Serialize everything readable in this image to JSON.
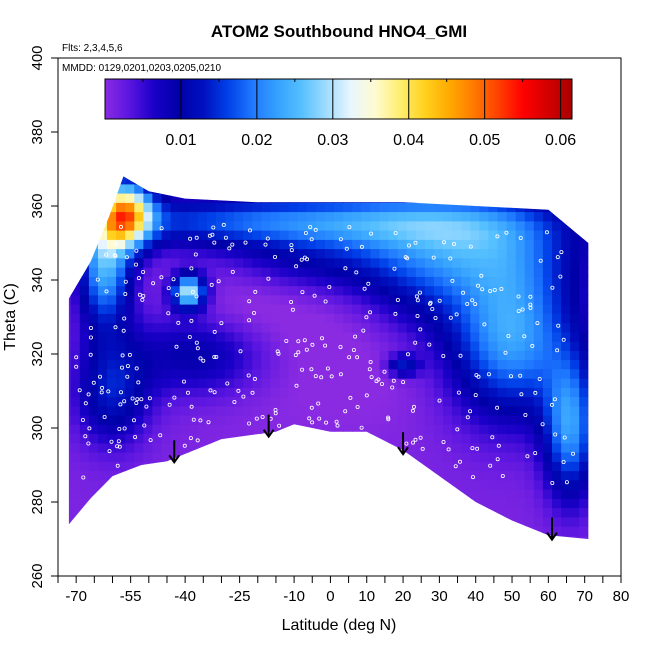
{
  "chart_data": {
    "type": "heatmap",
    "title": "ATOM2 Southbound HNO4_GMI",
    "flights_label": "Flts: 2,3,4,5,6",
    "dates_label": "MMDD: 0129,0201,0203,0205,0210",
    "xlabel": "Latitude (deg N)",
    "ylabel": "Theta (C)",
    "xlim": [
      -75,
      80
    ],
    "ylim": [
      260,
      400
    ],
    "x_ticks_labeled": [
      -70,
      -55,
      -40,
      -25,
      -10,
      0,
      10,
      20,
      30,
      40,
      50,
      60,
      70,
      80
    ],
    "x_tick_labels": [
      "-70",
      "-55",
      "-40",
      "-25",
      "-10",
      "0",
      "10",
      "20",
      "30",
      "40",
      "50",
      "60",
      "70",
      "80"
    ],
    "x_ticks_minor": [
      -75,
      -65,
      -60,
      -50,
      -45,
      -35,
      -30,
      -20,
      -15,
      -5,
      5,
      15,
      25,
      35,
      45,
      55,
      65,
      75
    ],
    "y_ticks": [
      260,
      280,
      300,
      320,
      340,
      360,
      380,
      400
    ],
    "y_tick_labels": [
      "260",
      "280",
      "300",
      "320",
      "340",
      "360",
      "380",
      "400"
    ],
    "colorbar": {
      "range": [
        0,
        0.0615
      ],
      "ticks": [
        0.01,
        0.02,
        0.03,
        0.04,
        0.05,
        0.06
      ],
      "tick_labels": [
        "0.01",
        "0.02",
        "0.03",
        "0.04",
        "0.05",
        "0.06"
      ],
      "colors": [
        "#8a2be2",
        "#5a15e0",
        "#1a00c8",
        "#0000a8",
        "#0010c0",
        "#0040e8",
        "#1f78ff",
        "#35a0ff",
        "#55c0ff",
        "#a0dcff",
        "#e8f6ff",
        "#fffbd0",
        "#ffee70",
        "#ffd21e",
        "#ffaa00",
        "#ff7a00",
        "#ff4000",
        "#ff0000",
        "#d40000",
        "#a80000"
      ]
    },
    "curtain": {
      "top_boundary": [
        [
          -72,
          335
        ],
        [
          -66,
          345
        ],
        [
          -61,
          357
        ],
        [
          -57,
          368
        ],
        [
          -50,
          364
        ],
        [
          -40,
          362
        ],
        [
          -20,
          361
        ],
        [
          0,
          361
        ],
        [
          20,
          361
        ],
        [
          40,
          360
        ],
        [
          60,
          359
        ],
        [
          71,
          350
        ]
      ],
      "bottom_boundary": [
        [
          -72,
          274
        ],
        [
          -66,
          281
        ],
        [
          -60,
          287
        ],
        [
          -52,
          290
        ],
        [
          -45,
          291
        ],
        [
          -30,
          297
        ],
        [
          -15,
          299
        ],
        [
          -10,
          301
        ],
        [
          0,
          299
        ],
        [
          10,
          299
        ],
        [
          20,
          294
        ],
        [
          30,
          287
        ],
        [
          40,
          280
        ],
        [
          50,
          275
        ],
        [
          60,
          271
        ],
        [
          71,
          270
        ]
      ],
      "background_value": 0.001,
      "features": [
        {
          "x": -25,
          "y": 330,
          "sx": 13,
          "sy": 15,
          "v": -0.003
        },
        {
          "x": 5,
          "y": 322,
          "sx": 20,
          "sy": 15,
          "v": -0.002
        },
        {
          "x": -10,
          "y": 345,
          "sx": 18,
          "sy": 6,
          "v": 0.006
        },
        {
          "x": 25,
          "y": 335,
          "sx": 12,
          "sy": 10,
          "v": 0.005
        },
        {
          "x": -60,
          "y": 310,
          "sx": 7,
          "sy": 10,
          "v": 0.012
        },
        {
          "x": -35,
          "y": 320,
          "sx": 14,
          "sy": 8,
          "v": 0.01
        },
        {
          "x": -12,
          "y": 356,
          "sx": 40,
          "sy": 5,
          "v": 0.018
        },
        {
          "x": 35,
          "y": 350,
          "sx": 22,
          "sy": 10,
          "v": 0.018
        },
        {
          "x": 50,
          "y": 325,
          "sx": 12,
          "sy": 15,
          "v": 0.022
        },
        {
          "x": 66,
          "y": 300,
          "sx": 5,
          "sy": 13,
          "v": 0.02
        },
        {
          "x": -62,
          "y": 345,
          "sx": 5,
          "sy": 12,
          "v": 0.024
        },
        {
          "x": -56,
          "y": 358,
          "sx": 5,
          "sy": 6,
          "v": 0.036
        },
        {
          "x": -39,
          "y": 337,
          "sx": 3.2,
          "sy": 3.2,
          "v": 0.03
        },
        {
          "x": 20,
          "y": 317,
          "sx": 3,
          "sy": 2,
          "v": 0.012
        }
      ]
    },
    "flight_points_shown": true,
    "arrows_latitude": [
      -43,
      -17,
      20,
      61
    ]
  }
}
